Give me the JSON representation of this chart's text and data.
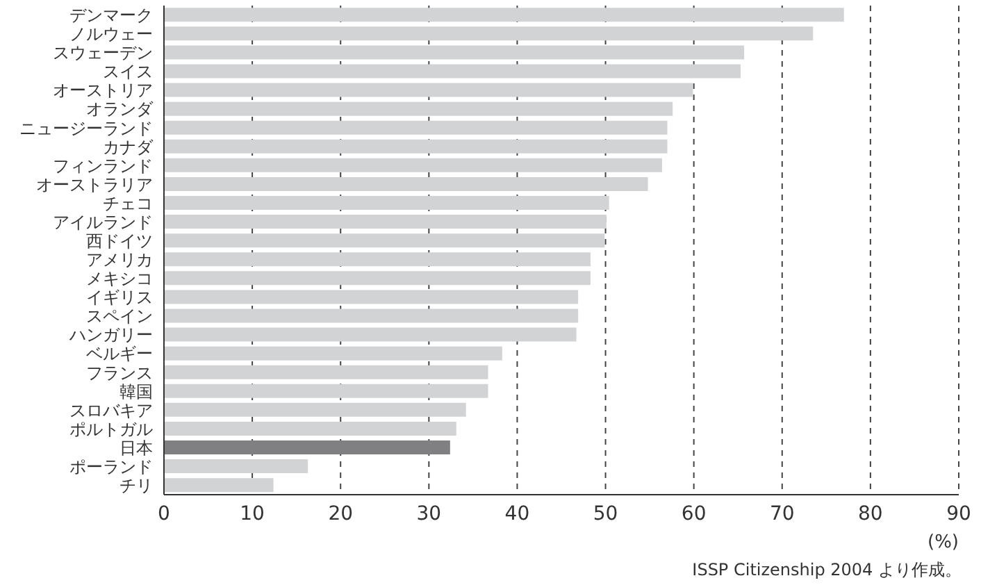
{
  "chart_data": {
    "type": "bar",
    "orientation": "horizontal",
    "categories": [
      "デンマーク",
      "ノルウェー",
      "スウェーデン",
      "スイス",
      "オーストリア",
      "オランダ",
      "ニュージーランド",
      "カナダ",
      "フィンランド",
      "オーストラリア",
      "チェコ",
      "アイルランド",
      "西ドイツ",
      "アメリカ",
      "メキシコ",
      "イギリス",
      "スペイン",
      "ハンガリー",
      "ベルギー",
      "フランス",
      "韓国",
      "スロバキア",
      "ポルトガル",
      "日本",
      "ポーランド",
      "チリ"
    ],
    "values": [
      77.0,
      73.5,
      65.7,
      65.3,
      59.9,
      57.6,
      57.0,
      57.0,
      56.4,
      54.8,
      50.4,
      50.1,
      49.9,
      48.3,
      48.3,
      46.9,
      46.9,
      46.7,
      38.3,
      36.7,
      36.7,
      34.2,
      33.1,
      32.4,
      16.3,
      12.4
    ],
    "colors": [
      "#d2d3d5",
      "#d2d3d5",
      "#d2d3d5",
      "#d2d3d5",
      "#d2d3d5",
      "#d2d3d5",
      "#d2d3d5",
      "#d2d3d5",
      "#d2d3d5",
      "#d2d3d5",
      "#d2d3d5",
      "#d2d3d5",
      "#d2d3d5",
      "#d2d3d5",
      "#d2d3d5",
      "#d2d3d5",
      "#d2d3d5",
      "#d2d3d5",
      "#d2d3d5",
      "#d2d3d5",
      "#d2d3d5",
      "#d2d3d5",
      "#d2d3d5",
      "#808083",
      "#d2d3d5",
      "#d2d3d5"
    ],
    "xlim": [
      0,
      90
    ],
    "xticks": [
      0,
      10,
      20,
      30,
      40,
      50,
      60,
      70,
      80,
      90
    ],
    "xlabel": "(%)",
    "grid": "x",
    "annotations": [
      "ISSP Citizenship 2004 より作成。"
    ]
  }
}
